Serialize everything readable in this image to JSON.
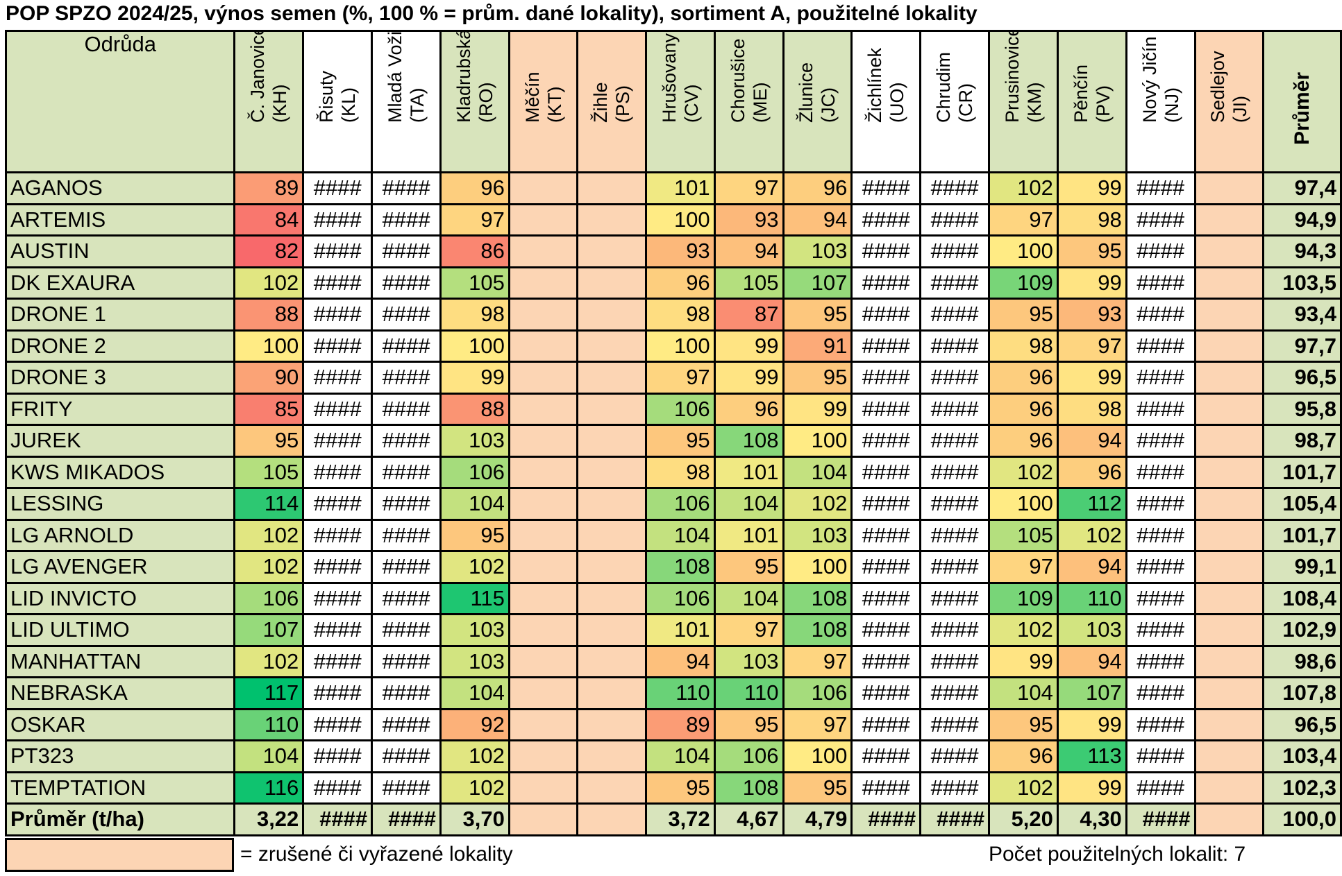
{
  "title": "POP SPZO 2024/25, výnos semen (%, 100 % = prům. dané lokality), sortiment A, použitelné lokality",
  "header": {
    "variety": "Odrůda",
    "average": "Průměr",
    "locations": [
      {
        "name": "Č. Janovice",
        "code": "(KH)"
      },
      {
        "name": "Řisuty",
        "code": "(KL)"
      },
      {
        "name": "Mladá Vožice",
        "code": "(TA)"
      },
      {
        "name": "Kladrubská",
        "code": "(RO)"
      },
      {
        "name": "Měčín",
        "code": "(KT)"
      },
      {
        "name": "Žihle",
        "code": "(PS)"
      },
      {
        "name": "Hrušovany",
        "code": "(CV)"
      },
      {
        "name": "Chorušice",
        "code": "(ME)"
      },
      {
        "name": "Žlunice",
        "code": "(JC)"
      },
      {
        "name": "Žichlínek",
        "code": "(UO)"
      },
      {
        "name": "Chrudim",
        "code": "(CR)"
      },
      {
        "name": "Prusinovice",
        "code": "(KM)"
      },
      {
        "name": "Pěnčín",
        "code": "(PV)"
      },
      {
        "name": "Nový Jičín",
        "code": "(NJ)"
      },
      {
        "name": "Sedlejov",
        "code": "(JI)"
      }
    ]
  },
  "rows": [
    {
      "variety": "AGANOS",
      "cells": [
        "89",
        "####",
        "####",
        "96",
        "",
        "",
        "101",
        "97",
        "96",
        "####",
        "####",
        "102",
        "99",
        "####",
        ""
      ],
      "avg": "97,4"
    },
    {
      "variety": "ARTEMIS",
      "cells": [
        "84",
        "####",
        "####",
        "97",
        "",
        "",
        "100",
        "93",
        "94",
        "####",
        "####",
        "97",
        "98",
        "####",
        ""
      ],
      "avg": "94,9"
    },
    {
      "variety": "AUSTIN",
      "cells": [
        "82",
        "####",
        "####",
        "86",
        "",
        "",
        "93",
        "94",
        "103",
        "####",
        "####",
        "100",
        "95",
        "####",
        ""
      ],
      "avg": "94,3"
    },
    {
      "variety": "DK EXAURA",
      "cells": [
        "102",
        "####",
        "####",
        "105",
        "",
        "",
        "96",
        "105",
        "107",
        "####",
        "####",
        "109",
        "99",
        "####",
        ""
      ],
      "avg": "103,5"
    },
    {
      "variety": "DRONE 1",
      "cells": [
        "88",
        "####",
        "####",
        "98",
        "",
        "",
        "98",
        "87",
        "95",
        "####",
        "####",
        "95",
        "93",
        "####",
        ""
      ],
      "avg": "93,4"
    },
    {
      "variety": "DRONE 2",
      "cells": [
        "100",
        "####",
        "####",
        "100",
        "",
        "",
        "100",
        "99",
        "91",
        "####",
        "####",
        "98",
        "97",
        "####",
        ""
      ],
      "avg": "97,7"
    },
    {
      "variety": "DRONE 3",
      "cells": [
        "90",
        "####",
        "####",
        "99",
        "",
        "",
        "97",
        "99",
        "95",
        "####",
        "####",
        "96",
        "99",
        "####",
        ""
      ],
      "avg": "96,5"
    },
    {
      "variety": "FRITY",
      "cells": [
        "85",
        "####",
        "####",
        "88",
        "",
        "",
        "106",
        "96",
        "99",
        "####",
        "####",
        "96",
        "98",
        "####",
        ""
      ],
      "avg": "95,8"
    },
    {
      "variety": "JUREK",
      "cells": [
        "95",
        "####",
        "####",
        "103",
        "",
        "",
        "95",
        "108",
        "100",
        "####",
        "####",
        "96",
        "94",
        "####",
        ""
      ],
      "avg": "98,7"
    },
    {
      "variety": "KWS MIKADOS",
      "cells": [
        "105",
        "####",
        "####",
        "106",
        "",
        "",
        "98",
        "101",
        "104",
        "####",
        "####",
        "102",
        "96",
        "####",
        ""
      ],
      "avg": "101,7"
    },
    {
      "variety": "LESSING",
      "cells": [
        "114",
        "####",
        "####",
        "104",
        "",
        "",
        "106",
        "104",
        "102",
        "####",
        "####",
        "100",
        "112",
        "####",
        ""
      ],
      "avg": "105,4"
    },
    {
      "variety": "LG ARNOLD",
      "cells": [
        "102",
        "####",
        "####",
        "95",
        "",
        "",
        "104",
        "101",
        "103",
        "####",
        "####",
        "105",
        "102",
        "####",
        ""
      ],
      "avg": "101,7"
    },
    {
      "variety": "LG AVENGER",
      "cells": [
        "102",
        "####",
        "####",
        "102",
        "",
        "",
        "108",
        "95",
        "100",
        "####",
        "####",
        "97",
        "94",
        "####",
        ""
      ],
      "avg": "99,1"
    },
    {
      "variety": "LID INVICTO",
      "cells": [
        "106",
        "####",
        "####",
        "115",
        "",
        "",
        "106",
        "104",
        "108",
        "####",
        "####",
        "109",
        "110",
        "####",
        ""
      ],
      "avg": "108,4"
    },
    {
      "variety": "LID ULTIMO",
      "cells": [
        "107",
        "####",
        "####",
        "103",
        "",
        "",
        "101",
        "97",
        "108",
        "####",
        "####",
        "102",
        "103",
        "####",
        ""
      ],
      "avg": "102,9"
    },
    {
      "variety": "MANHATTAN",
      "cells": [
        "102",
        "####",
        "####",
        "103",
        "",
        "",
        "94",
        "103",
        "97",
        "####",
        "####",
        "99",
        "94",
        "####",
        ""
      ],
      "avg": "98,6"
    },
    {
      "variety": "NEBRASKA",
      "cells": [
        "117",
        "####",
        "####",
        "104",
        "",
        "",
        "110",
        "110",
        "106",
        "####",
        "####",
        "104",
        "107",
        "####",
        ""
      ],
      "avg": "107,8"
    },
    {
      "variety": "OSKAR",
      "cells": [
        "110",
        "####",
        "####",
        "92",
        "",
        "",
        "89",
        "95",
        "97",
        "####",
        "####",
        "95",
        "99",
        "####",
        ""
      ],
      "avg": "96,5"
    },
    {
      "variety": "PT323",
      "cells": [
        "104",
        "####",
        "####",
        "102",
        "",
        "",
        "104",
        "106",
        "100",
        "####",
        "####",
        "96",
        "113",
        "####",
        ""
      ],
      "avg": "103,4"
    },
    {
      "variety": "TEMPTATION",
      "cells": [
        "116",
        "####",
        "####",
        "102",
        "",
        "",
        "95",
        "108",
        "95",
        "####",
        "####",
        "102",
        "99",
        "####",
        ""
      ],
      "avg": "102,3"
    }
  ],
  "total": {
    "label": "Průměr (t/ha)",
    "cells": [
      "3,22",
      "####",
      "####",
      "3,70",
      "",
      "",
      "3,72",
      "4,67",
      "4,79",
      "####",
      "####",
      "5,20",
      "4,30",
      "####",
      ""
    ],
    "avg": "100,0"
  },
  "cancelled_columns": [
    4,
    5,
    14
  ],
  "hash_columns": [
    1,
    2,
    9,
    10,
    13
  ],
  "colors": {
    "header_green": "#d8e4bc",
    "cancelled": "#fcd5b4",
    "scale_low": "#f8696b",
    "scale_mid": "#ffeb84",
    "scale_high": "#00c16e"
  },
  "legend": {
    "text": "= zrušené či vyřazené lokality",
    "count": "Počet použitelných lokalit:  7"
  }
}
